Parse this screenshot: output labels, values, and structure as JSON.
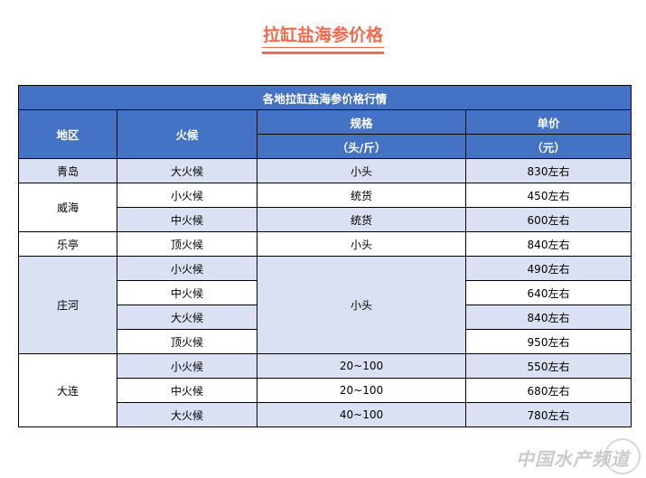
{
  "title": "拉缸盐海参价格",
  "table": {
    "caption": "各地拉缸盐海参价格行情",
    "headers": {
      "region": "地区",
      "heat": "火候",
      "spec": "规格",
      "spec_unit": "（头/斤）",
      "price": "单价",
      "price_unit": "（元）"
    },
    "groups": [
      {
        "region": "青岛",
        "rows": [
          {
            "heat": "大火候",
            "spec": "小头",
            "price": "830左右"
          }
        ]
      },
      {
        "region": "威海",
        "rows": [
          {
            "heat": "小火候",
            "spec": "统货",
            "price": "450左右"
          },
          {
            "heat": "中火候",
            "spec": "统货",
            "price": "600左右"
          }
        ]
      },
      {
        "region": "乐亭",
        "rows": [
          {
            "heat": "顶火候",
            "spec": "小头",
            "price": "840左右"
          }
        ]
      },
      {
        "region": "庄河",
        "spec_merged": "小头",
        "rows": [
          {
            "heat": "小火候",
            "price": "490左右"
          },
          {
            "heat": "中火候",
            "price": "640左右"
          },
          {
            "heat": "大火候",
            "price": "840左右"
          },
          {
            "heat": "顶火候",
            "price": "950左右"
          }
        ]
      },
      {
        "region": "大连",
        "rows": [
          {
            "heat": "小火候",
            "spec": "20~100",
            "price": "550左右"
          },
          {
            "heat": "中火候",
            "spec": "20~100",
            "price": "680左右"
          },
          {
            "heat": "大火候",
            "spec": "40~100",
            "price": "780左右"
          }
        ]
      }
    ]
  },
  "watermark": "中国水产频道",
  "colors": {
    "accent": "#f26b4f",
    "header": "#4472c4",
    "stripe": "#d9e1f2"
  }
}
